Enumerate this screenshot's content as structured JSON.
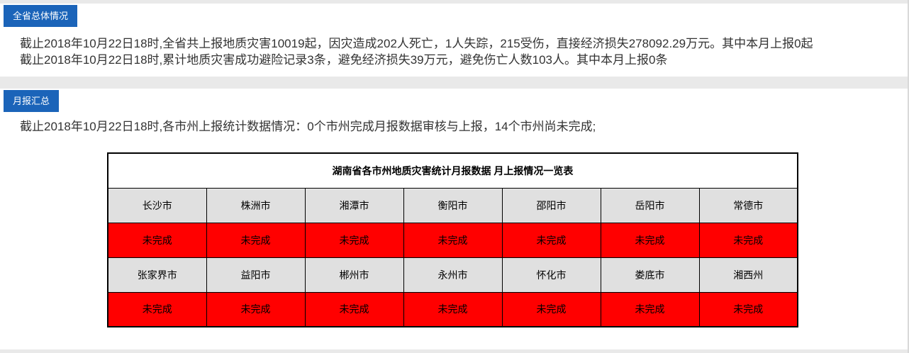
{
  "page": {
    "overview": {
      "badge_label": "全省总体情况",
      "line1": "截止2018年10月22日18时,全省共上报地质灾害10019起，因灾造成202人死亡，1人失踪，215受伤，直接经济损失278092.29万元。其中本月上报0起",
      "line2": "截止2018年10月22日18时,累计地质灾害成功避险记录3条，避免经济损失39万元，避免伤亡人数103人。其中本月上报0条"
    },
    "monthly": {
      "badge_label": "月报汇总",
      "summary": "截止2018年10月22日18时,各市州上报统计数据情况：0个市州完成月报数据审核与上报，14个市州尚未完成;",
      "table": {
        "title": "湖南省各市州地质灾害统计月报数据 月上报情况一览表",
        "rows": [
          {
            "type": "cities",
            "cells": [
              "长沙市",
              "株洲市",
              "湘潭市",
              "衡阳市",
              "邵阳市",
              "岳阳市",
              "常德市"
            ]
          },
          {
            "type": "status",
            "cells": [
              "未完成",
              "未完成",
              "未完成",
              "未完成",
              "未完成",
              "未完成",
              "未完成"
            ]
          },
          {
            "type": "cities",
            "cells": [
              "张家界市",
              "益阳市",
              "郴州市",
              "永州市",
              "怀化市",
              "娄底市",
              "湘西州"
            ]
          },
          {
            "type": "status",
            "cells": [
              "未完成",
              "未完成",
              "未完成",
              "未完成",
              "未完成",
              "未完成",
              "未完成"
            ]
          }
        ]
      }
    },
    "colors": {
      "badge_background": "#1b64b9",
      "status_incomplete_background": "#ff0000",
      "city_cell_background": "#e0e0e0",
      "divider_gray": "#e9e9e9"
    }
  }
}
